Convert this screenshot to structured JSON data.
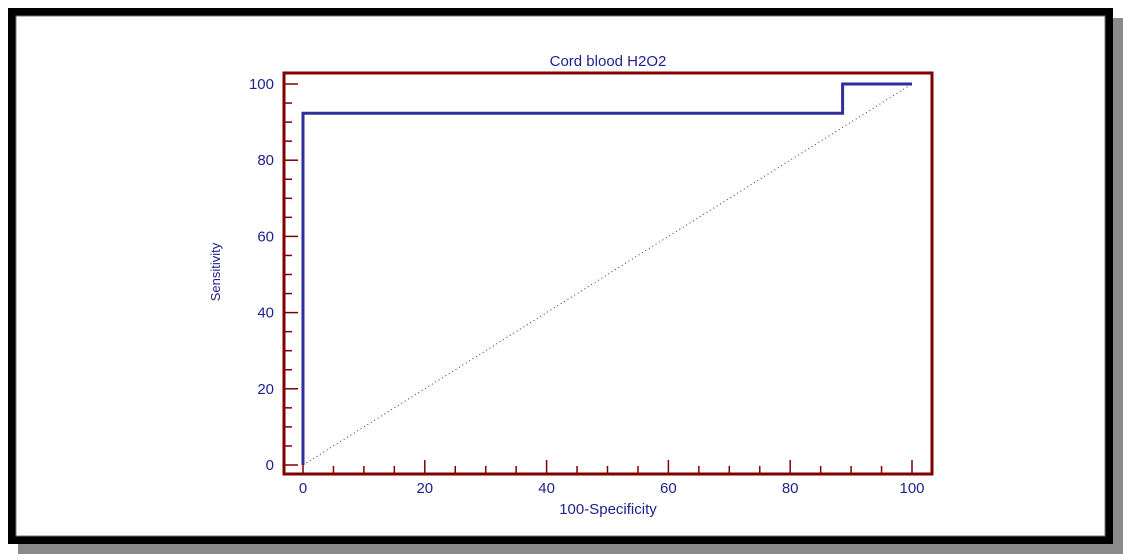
{
  "colors": {
    "frame": "#000000",
    "axes": "#800000",
    "curve": "#2e2e9c",
    "text": "#1f1f8f",
    "diagonal": "#a01010"
  },
  "chart_data": {
    "type": "line",
    "title": "Cord blood H2O2",
    "xlabel": "100-Specificity",
    "ylabel": "Sensitivity",
    "xlim": [
      0,
      100
    ],
    "ylim": [
      0,
      100
    ],
    "xticks": [
      0,
      20,
      40,
      60,
      80,
      100
    ],
    "yticks": [
      0,
      20,
      40,
      60,
      80,
      100
    ],
    "grid": false,
    "series": [
      {
        "style": "solid",
        "x": [
          0,
          0,
          88.6,
          88.6,
          100
        ],
        "y": [
          0,
          92.3,
          92.3,
          100,
          100
        ]
      },
      {
        "style": "dotted-diagonal",
        "x": [
          0,
          100
        ],
        "y": [
          0,
          100
        ]
      }
    ]
  }
}
